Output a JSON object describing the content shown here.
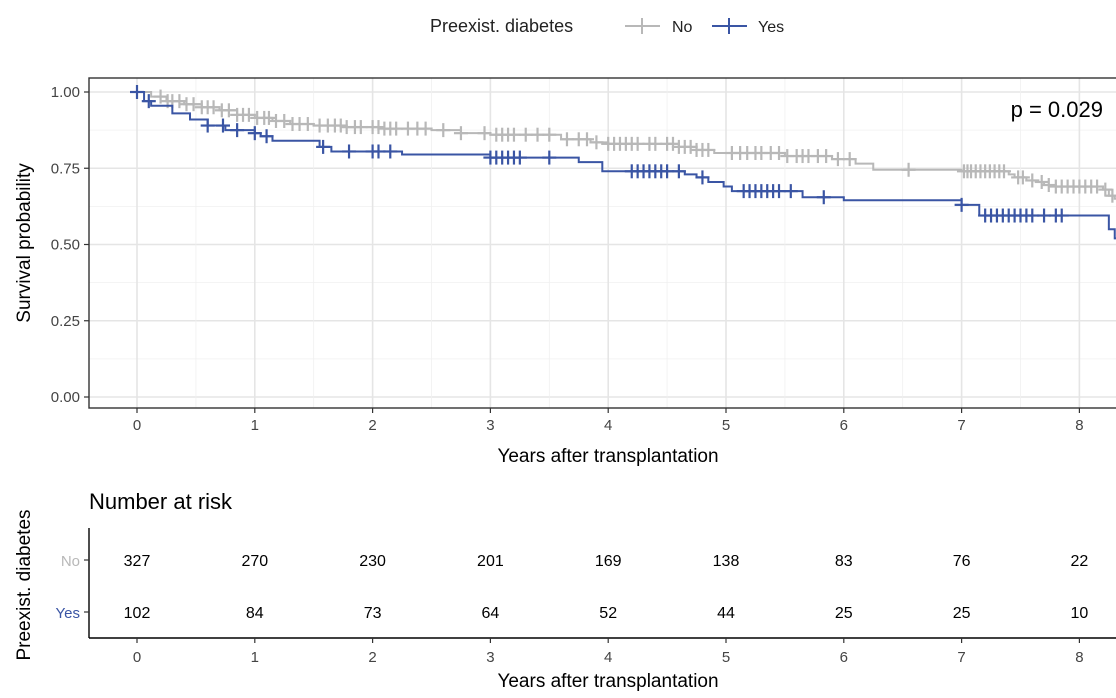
{
  "legend": {
    "title": "Preexist. diabetes"
  },
  "chart_data": {
    "type": "line",
    "subtype": "kaplan-meier",
    "xlabel": "Years after transplantation",
    "ylabel": "Survival probability",
    "xlim": [
      -0.4,
      8.3
    ],
    "ylim": [
      -0.05,
      1.05
    ],
    "x_ticks": [
      0,
      1,
      2,
      3,
      4,
      5,
      6,
      7,
      8
    ],
    "y_ticks": [
      0.0,
      0.25,
      0.5,
      0.75,
      1.0
    ],
    "y_tick_labels": [
      "0.00",
      "0.25",
      "0.50",
      "0.75",
      "1.00"
    ],
    "grid": true,
    "legend_position": "top",
    "annotation": "p = 0.029",
    "series": [
      {
        "name": "No",
        "color": "#b8b8b8",
        "steps": [
          [
            0,
            1.0
          ],
          [
            0.12,
            0.985
          ],
          [
            0.25,
            0.97
          ],
          [
            0.4,
            0.96
          ],
          [
            0.55,
            0.95
          ],
          [
            0.7,
            0.94
          ],
          [
            0.85,
            0.925
          ],
          [
            1.0,
            0.915
          ],
          [
            1.15,
            0.905
          ],
          [
            1.3,
            0.895
          ],
          [
            1.5,
            0.89
          ],
          [
            1.75,
            0.885
          ],
          [
            2.1,
            0.88
          ],
          [
            2.5,
            0.875
          ],
          [
            2.75,
            0.865
          ],
          [
            3.0,
            0.86
          ],
          [
            3.6,
            0.845
          ],
          [
            3.85,
            0.835
          ],
          [
            4.0,
            0.83
          ],
          [
            4.6,
            0.82
          ],
          [
            4.75,
            0.81
          ],
          [
            4.9,
            0.8
          ],
          [
            5.5,
            0.79
          ],
          [
            5.9,
            0.78
          ],
          [
            6.1,
            0.765
          ],
          [
            6.25,
            0.745
          ],
          [
            7.0,
            0.74
          ],
          [
            7.4,
            0.73
          ],
          [
            7.45,
            0.72
          ],
          [
            7.55,
            0.71
          ],
          [
            7.65,
            0.705
          ],
          [
            7.7,
            0.695
          ],
          [
            7.8,
            0.69
          ],
          [
            8.2,
            0.68
          ],
          [
            8.25,
            0.66
          ],
          [
            8.3,
            0.65
          ]
        ],
        "censor_x": [
          0.2,
          0.26,
          0.3,
          0.36,
          0.42,
          0.48,
          0.55,
          0.6,
          0.65,
          0.72,
          0.78,
          0.85,
          0.9,
          0.95,
          1.02,
          1.08,
          1.12,
          1.18,
          1.25,
          1.32,
          1.38,
          1.45,
          1.55,
          1.62,
          1.68,
          1.73,
          1.78,
          1.85,
          1.9,
          2.0,
          2.05,
          2.1,
          2.15,
          2.2,
          2.3,
          2.38,
          2.45,
          2.6,
          2.75,
          2.95,
          3.05,
          3.1,
          3.15,
          3.2,
          3.3,
          3.4,
          3.5,
          3.65,
          3.75,
          3.82,
          3.9,
          4.0,
          4.05,
          4.1,
          4.15,
          4.2,
          4.25,
          4.35,
          4.4,
          4.5,
          4.55,
          4.6,
          4.65,
          4.7,
          4.75,
          4.8,
          4.85,
          5.05,
          5.12,
          5.18,
          5.25,
          5.3,
          5.38,
          5.45,
          5.52,
          5.6,
          5.65,
          5.7,
          5.78,
          5.85,
          5.95,
          6.05,
          6.55,
          7.02,
          7.05,
          7.08,
          7.12,
          7.16,
          7.2,
          7.24,
          7.28,
          7.32,
          7.36,
          7.48,
          7.52,
          7.6,
          7.68,
          7.74,
          7.8,
          7.85,
          7.9,
          7.95,
          8.0,
          8.05,
          8.1,
          8.15,
          8.22,
          8.28
        ]
      },
      {
        "name": "Yes",
        "color": "#3a55a4",
        "steps": [
          [
            0,
            1.0
          ],
          [
            0.06,
            0.97
          ],
          [
            0.12,
            0.955
          ],
          [
            0.3,
            0.93
          ],
          [
            0.45,
            0.91
          ],
          [
            0.6,
            0.89
          ],
          [
            0.75,
            0.875
          ],
          [
            1.0,
            0.865
          ],
          [
            1.05,
            0.855
          ],
          [
            1.15,
            0.84
          ],
          [
            1.55,
            0.82
          ],
          [
            1.65,
            0.805
          ],
          [
            2.25,
            0.795
          ],
          [
            3.0,
            0.785
          ],
          [
            3.75,
            0.77
          ],
          [
            3.95,
            0.74
          ],
          [
            4.65,
            0.73
          ],
          [
            4.75,
            0.72
          ],
          [
            4.85,
            0.705
          ],
          [
            4.98,
            0.69
          ],
          [
            5.05,
            0.675
          ],
          [
            5.65,
            0.655
          ],
          [
            6.0,
            0.645
          ],
          [
            7.0,
            0.63
          ],
          [
            7.15,
            0.595
          ],
          [
            8.25,
            0.55
          ],
          [
            8.3,
            0.52
          ]
        ],
        "censor_x": [
          0,
          0.1,
          0.6,
          0.73,
          0.85,
          1.0,
          1.1,
          1.58,
          1.8,
          2.0,
          2.05,
          2.15,
          3.0,
          3.05,
          3.1,
          3.15,
          3.2,
          3.25,
          3.5,
          4.2,
          4.25,
          4.3,
          4.35,
          4.4,
          4.45,
          4.5,
          4.6,
          4.8,
          5.15,
          5.2,
          5.25,
          5.3,
          5.35,
          5.4,
          5.45,
          5.55,
          5.83,
          7.0,
          7.2,
          7.25,
          7.3,
          7.35,
          7.4,
          7.45,
          7.5,
          7.55,
          7.6,
          7.7,
          7.8,
          7.85
        ]
      }
    ]
  },
  "risk_table": {
    "title": "Number at risk",
    "ylabel": "Preexist. diabetes",
    "xlabel": "Years after transplantation",
    "x": [
      0,
      1,
      2,
      3,
      4,
      5,
      6,
      7,
      8
    ],
    "x_tick_labels": [
      "0",
      "1",
      "2",
      "3",
      "4",
      "5",
      "6",
      "7",
      "8"
    ],
    "rows": [
      {
        "label": "No",
        "color": "#b8b8b8",
        "values": [
          "327",
          "270",
          "230",
          "201",
          "169",
          "138",
          "83",
          "76",
          "22"
        ]
      },
      {
        "label": "Yes",
        "color": "#3a55a4",
        "values": [
          "102",
          "84",
          "73",
          "64",
          "52",
          "44",
          "25",
          "25",
          "10"
        ]
      }
    ]
  }
}
